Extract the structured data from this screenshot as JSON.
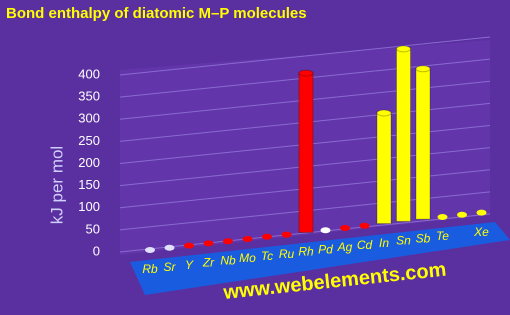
{
  "chart_data": {
    "type": "bar3d",
    "title": "Bond enthalpy of diatomic M–P molecules",
    "y_label": "kJ per mol",
    "watermark": "www.webelements.com",
    "categories": [
      "Rb",
      "Sr",
      "Y",
      "Zr",
      "Nb",
      "Mo",
      "Tc",
      "Ru",
      "Rh",
      "Pd",
      "Ag",
      "Cd",
      "In",
      "Sn",
      "Sb",
      "Te",
      null,
      "Xe"
    ],
    "values": [
      null,
      null,
      null,
      null,
      null,
      null,
      null,
      null,
      360,
      null,
      null,
      null,
      250,
      390,
      340,
      null,
      null,
      null
    ],
    "colors": [
      "#e0e0ff",
      "#e0e0ff",
      "#ff0000",
      "#ff0000",
      "#ff0000",
      "#ff0000",
      "#ff0000",
      "#ff0000",
      "#ff0000",
      "#ffffff",
      "#ff0000",
      "#ff0000",
      "#ffff00",
      "#ffff00",
      "#ffff00",
      "#ffff00",
      "#ffff00",
      "#ffff00"
    ],
    "ylim": [
      0,
      400
    ],
    "yticks": [
      0,
      50,
      100,
      150,
      200,
      250,
      300,
      350,
      400
    ],
    "grid": true
  }
}
